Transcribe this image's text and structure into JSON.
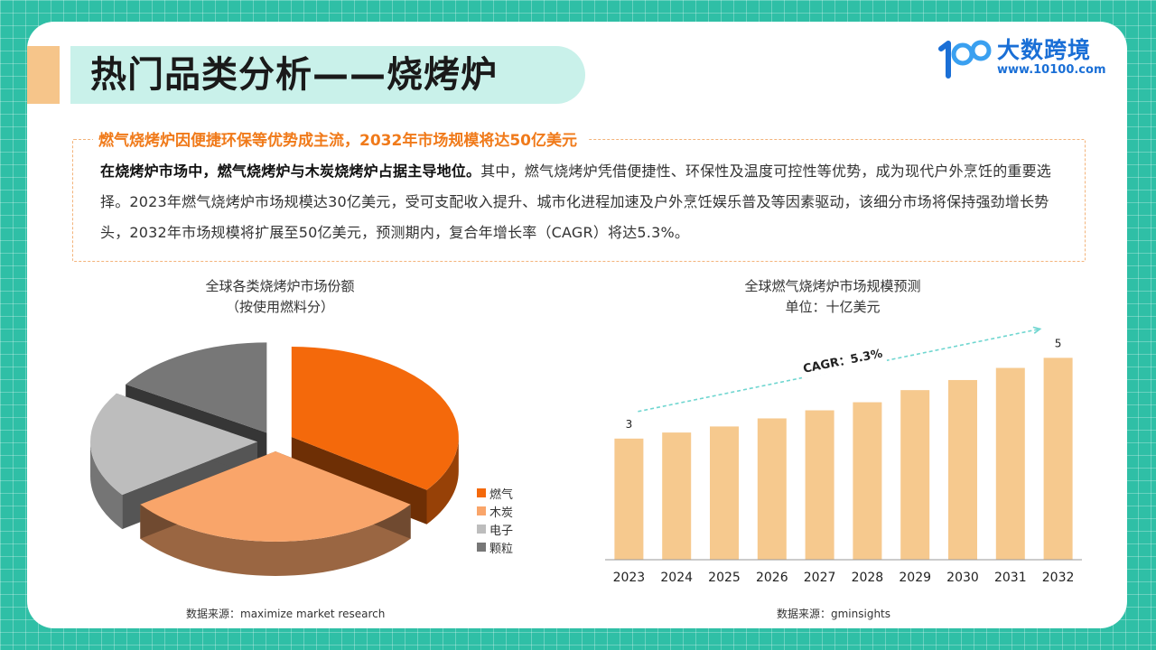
{
  "page": {
    "title": "热门品类分析——烧烤炉"
  },
  "logo": {
    "name": "大数跨境",
    "url": "www.10100.com",
    "mark_text": "100"
  },
  "summary": {
    "heading": "燃气烧烤炉因便捷环保等优势成主流，2032年市场规模将达50亿美元",
    "lead_bold": "在烧烤炉市场中，燃气烧烤炉与木炭烧烤炉占据主导地位。",
    "body": "其中，燃气烧烤炉凭借便捷性、环保性及温度可控性等优势，成为现代户外烹饪的重要选择。2023年燃气烧烤炉市场规模达30亿美元，受可支配收入提升、城市化进程加速及户外烹饪娱乐普及等因素驱动，该细分市场将保持强劲增长势头，2032年市场规模将扩展至50亿美元，预测期内，复合年增长率（CAGR）将达5.3%。"
  },
  "colors": {
    "background": "#2fbfa6",
    "title_band": "#c9f1ea",
    "accent_orange": "#f07a1a",
    "bar": "#f6c98e",
    "cagr_arrow": "#6fd6d0"
  },
  "left_chart": {
    "title_line1": "全球各类烧烤炉市场份额",
    "title_line2": "（按使用燃料分）",
    "source": "数据来源：maximize market research"
  },
  "right_chart": {
    "title_line1": "全球燃气烧烤炉市场规模预测",
    "title_line2": "单位：十亿美元",
    "source": "数据来源：gminsights",
    "cagr_label": "CAGR：5.3%"
  },
  "chart_data": [
    {
      "type": "pie",
      "title": "全球各类烧烤炉市场份额",
      "subtitle": "（按使用燃料分）",
      "categories": [
        "燃气",
        "木炭",
        "电子",
        "颗粒"
      ],
      "values": [
        35,
        30,
        19,
        16
      ],
      "colors": [
        "#f4690b",
        "#f9a56a",
        "#bdbdbd",
        "#777777"
      ],
      "legend": "right"
    },
    {
      "type": "bar",
      "title": "全球燃气烧烤炉市场规模预测",
      "subtitle": "单位：十亿美元",
      "categories": [
        "2023",
        "2024",
        "2025",
        "2026",
        "2027",
        "2028",
        "2029",
        "2030",
        "2031",
        "2032"
      ],
      "values": [
        3.0,
        3.15,
        3.3,
        3.5,
        3.7,
        3.9,
        4.2,
        4.45,
        4.75,
        5.0
      ],
      "data_labels": {
        "0": "3",
        "9": "5"
      },
      "ylim": [
        0,
        5.5
      ],
      "grid": false
    }
  ]
}
